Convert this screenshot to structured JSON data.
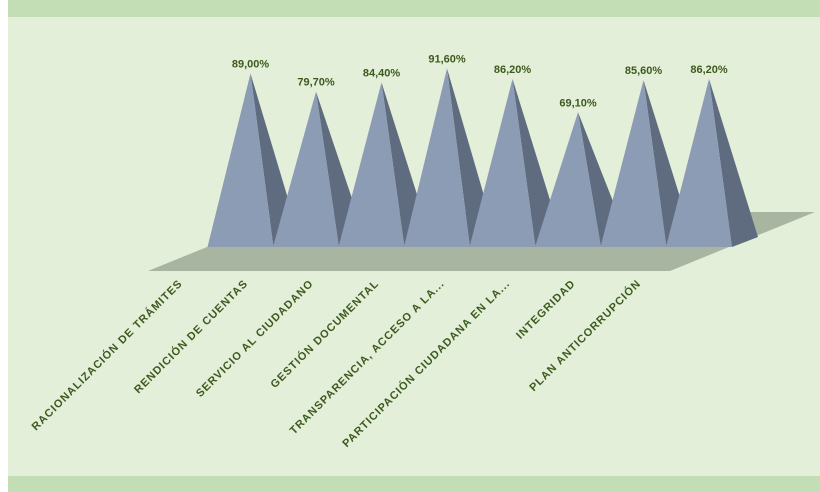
{
  "chart_data": {
    "type": "bar",
    "bar_shape": "pyramid-3d",
    "categories": [
      "RACIONALIZACIÓN DE TRÁMITES",
      "RENDICIÓN DE CUENTAS",
      "SERVICIO AL CIUDADANO",
      "GESTIÓN DOCUMENTAL",
      "TRANSPARENCIA, ACCESO A LA...",
      "PARTICIPACIÓN CIUDADANA EN LA...",
      "INTEGRIDAD",
      "PLAN ANTICORRUPCIÓN"
    ],
    "values": [
      89.0,
      79.7,
      84.4,
      91.6,
      86.2,
      69.1,
      85.6,
      86.2
    ],
    "data_labels": [
      "89,00%",
      "79,70%",
      "84,40%",
      "91,60%",
      "86,20%",
      "69,10%",
      "85,60%",
      "86,20%"
    ],
    "ylim": [
      0,
      100
    ],
    "grid": false,
    "legend": "none",
    "colors": {
      "background": "#e3efd9",
      "band": "#c3deb4",
      "bar_front": "#8d9cb5",
      "bar_side": "#5f6c80",
      "floor": "#a8b5a1",
      "label_text": "#3d5a1e"
    }
  }
}
